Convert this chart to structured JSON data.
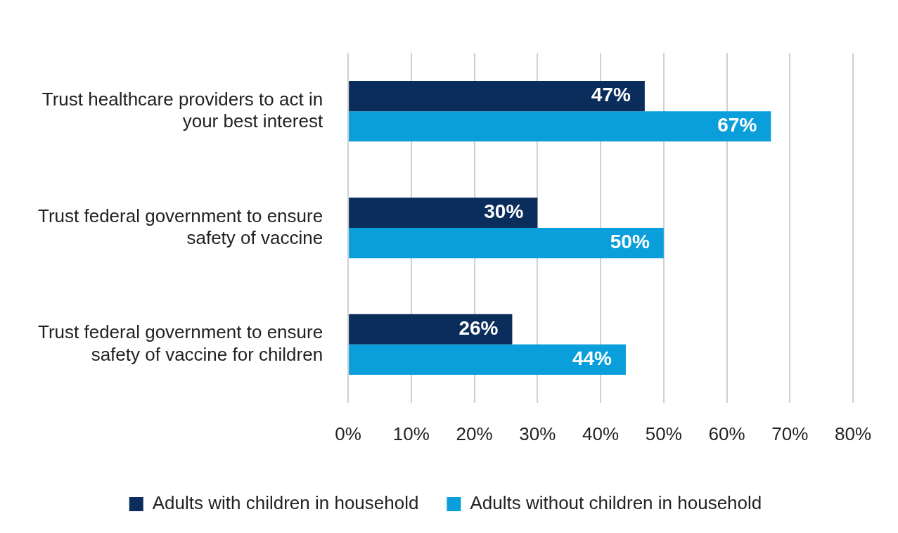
{
  "chart_data": {
    "type": "bar",
    "orientation": "horizontal",
    "categories": [
      "Trust healthcare providers to act in your best interest",
      "Trust federal government to ensure safety of vaccine",
      "Trust federal government to ensure safety of vaccine for children"
    ],
    "series": [
      {
        "name": "Adults with children in household",
        "color": "#0b2d5b",
        "values": [
          47,
          30,
          26
        ],
        "value_labels": [
          "47%",
          "30%",
          "26%"
        ]
      },
      {
        "name": "Adults without children in household",
        "color": "#0a9fdb",
        "values": [
          67,
          50,
          44
        ],
        "value_labels": [
          "67%",
          "50%",
          "44%"
        ]
      }
    ],
    "xlim": [
      0,
      80
    ],
    "xticks": [
      {
        "value": 0,
        "label": "0%"
      },
      {
        "value": 10,
        "label": "10%"
      },
      {
        "value": 20,
        "label": "20%"
      },
      {
        "value": 30,
        "label": "30%"
      },
      {
        "value": 40,
        "label": "40%"
      },
      {
        "value": 50,
        "label": "50%"
      },
      {
        "value": 60,
        "label": "60%"
      },
      {
        "value": 70,
        "label": "70%"
      },
      {
        "value": 80,
        "label": "80%"
      }
    ],
    "grid": "x",
    "legend": "bottom"
  }
}
